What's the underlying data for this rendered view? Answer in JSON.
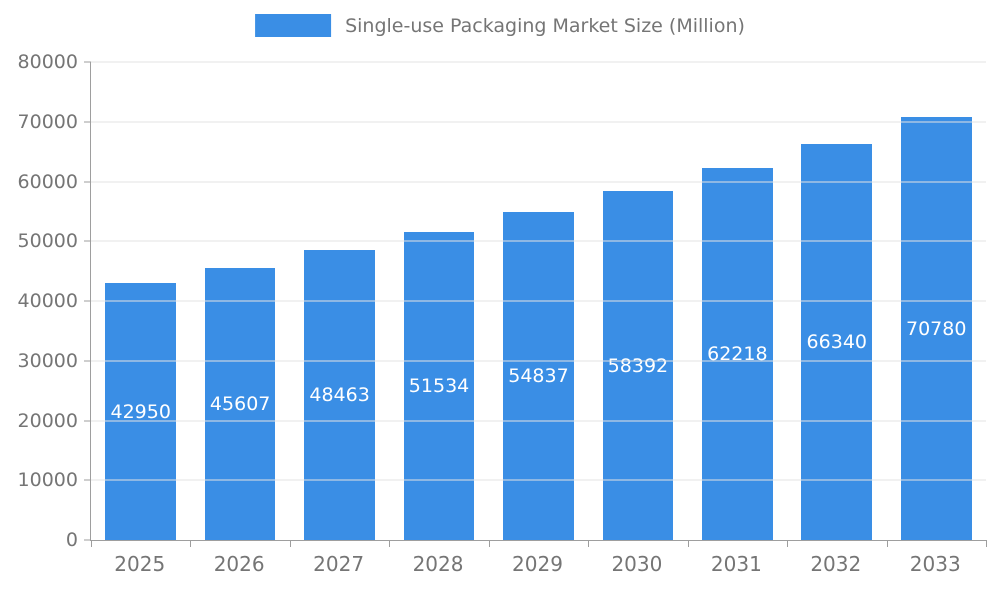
{
  "chart_data": {
    "type": "bar",
    "title": "Single-use Packaging Market Size (Million)",
    "categories": [
      "2025",
      "2026",
      "2027",
      "2028",
      "2029",
      "2030",
      "2031",
      "2032",
      "2033"
    ],
    "values": [
      42950,
      45607,
      48463,
      51534,
      54837,
      58392,
      62218,
      66340,
      70780
    ],
    "ylim": [
      0,
      80000
    ],
    "ytick_step": 10000,
    "grid": true,
    "legend_position": "top",
    "bar_color": "#3a8ee5",
    "value_label_color": "#ffffff",
    "axis_text_color": "#757575",
    "gridline_color": "#e3e3e3",
    "axis_line_color": "#9e9e9e",
    "background_color": "#ffffff"
  }
}
